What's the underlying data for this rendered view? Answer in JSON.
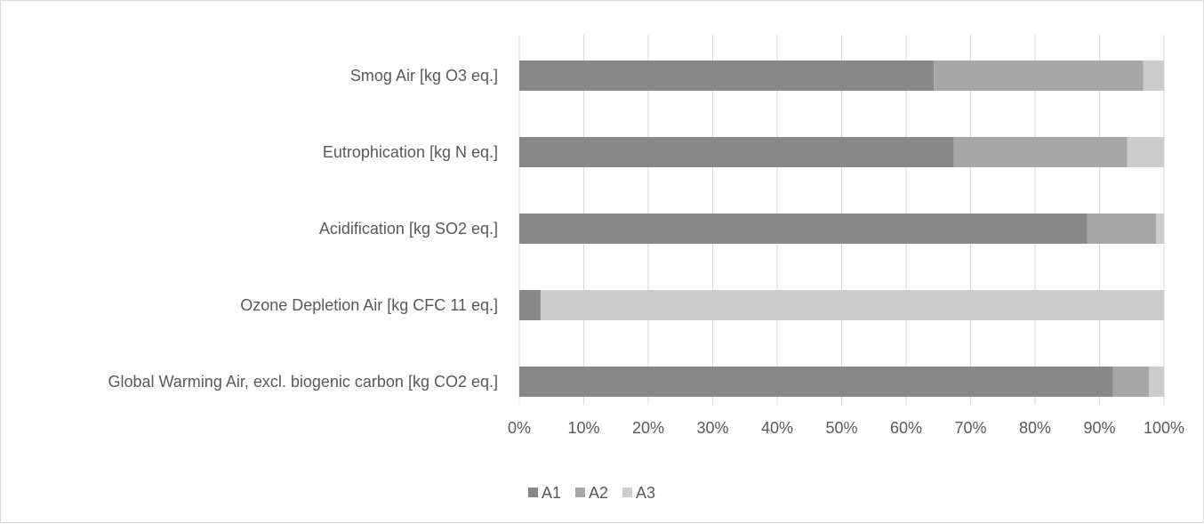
{
  "chart_data": {
    "type": "bar",
    "orientation": "horizontal",
    "stacked": "percent",
    "title": "",
    "xlabel": "",
    "ylabel": "",
    "xlim": [
      0,
      100
    ],
    "x_ticks": [
      "0%",
      "10%",
      "20%",
      "30%",
      "40%",
      "50%",
      "60%",
      "70%",
      "80%",
      "90%",
      "100%"
    ],
    "grid": "vertical",
    "legend_position": "bottom",
    "categories": [
      "Smog Air [kg O3 eq.]",
      "Eutrophication [kg N eq.]",
      "Acidification [kg SO2 eq.]",
      "Ozone Depletion Air [kg CFC 11 eq.]",
      "Global Warming Air, excl. biogenic carbon [kg CO2 eq.]"
    ],
    "series": [
      {
        "name": "A1",
        "color": "#878787",
        "values": [
          64.3,
          67.4,
          88.1,
          3.3,
          92.1
        ]
      },
      {
        "name": "A2",
        "color": "#a6a6a6",
        "values": [
          32.5,
          26.9,
          10.7,
          0.0,
          5.6
        ]
      },
      {
        "name": "A3",
        "color": "#cccccc",
        "values": [
          3.2,
          5.7,
          1.2,
          96.7,
          2.3
        ]
      }
    ]
  }
}
